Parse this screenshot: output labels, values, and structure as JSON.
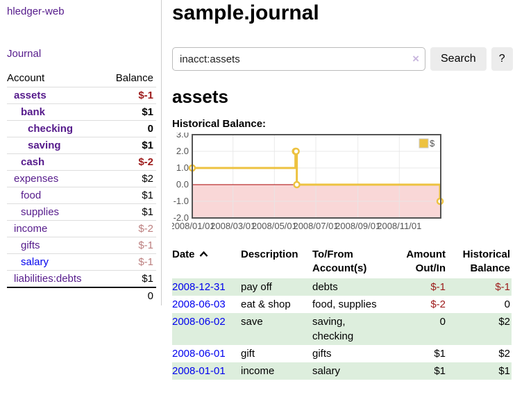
{
  "app": {
    "brand": "hledger-web"
  },
  "colors": {
    "link_purple": "#551A8B",
    "link_blue": "#0000EE",
    "negative_strong": "#9d1b1b",
    "negative_soft": "#bc7f7f",
    "row_stripe_green": "#ddeedd",
    "series_gold": "#edc240"
  },
  "sidebar": {
    "nav": {
      "journal": "Journal"
    },
    "accounts": {
      "headers": {
        "account": "Account",
        "balance": "Balance"
      },
      "rows": [
        {
          "name": "assets",
          "balance": "$-1"
        },
        {
          "name": "bank",
          "balance": "$1"
        },
        {
          "name": "checking",
          "balance": "0"
        },
        {
          "name": "saving",
          "balance": "$1"
        },
        {
          "name": "cash",
          "balance": "$-2"
        },
        {
          "name": "expenses",
          "balance": "$2"
        },
        {
          "name": "food",
          "balance": "$1"
        },
        {
          "name": "supplies",
          "balance": "$1"
        },
        {
          "name": "income",
          "balance": "$-2"
        },
        {
          "name": "gifts",
          "balance": "$-1"
        },
        {
          "name": "salary",
          "balance": "$-1"
        },
        {
          "name": "liabilities:debts",
          "balance": "$1"
        }
      ],
      "total": "0"
    }
  },
  "main": {
    "title": "sample.journal",
    "search": {
      "value": "inacct:assets",
      "clear_icon": "×",
      "button": "Search",
      "help": "?"
    },
    "account_heading": "assets",
    "chart_label": "Historical Balance:"
  },
  "chart_data": {
    "type": "line",
    "title": "Historical Balance:",
    "step": true,
    "x_domain": [
      "2008-01-01",
      "2009-01-01"
    ],
    "ylim": [
      -2,
      3
    ],
    "grid": true,
    "legend": {
      "label": "$",
      "position": "top-right"
    },
    "series": [
      {
        "name": "$",
        "color": "#edc240",
        "points": [
          [
            "2008-01-01",
            1
          ],
          [
            "2008-06-01",
            2
          ],
          [
            "2008-06-02",
            2
          ],
          [
            "2008-06-03",
            0
          ],
          [
            "2008-12-31",
            -1
          ]
        ]
      }
    ],
    "x_ticks": [
      {
        "date": "2008-01-01",
        "label": "2008/01/01"
      },
      {
        "date": "2008-03-01",
        "label": "2008/03/01"
      },
      {
        "date": "2008-05-01",
        "label": "2008/05/01"
      },
      {
        "date": "2008-07-01",
        "label": "2008/07/01"
      },
      {
        "date": "2008-09-01",
        "label": "2008/09/01"
      },
      {
        "date": "2008-11-01",
        "label": "2008/11/01"
      }
    ],
    "y_ticks": [
      {
        "v": 3,
        "label": "3.0"
      },
      {
        "v": 2,
        "label": "2.0"
      },
      {
        "v": 1,
        "label": "1.0"
      },
      {
        "v": 0,
        "label": "0.0"
      },
      {
        "v": -1,
        "label": "-1.0"
      },
      {
        "v": -2,
        "label": "-2.0"
      }
    ],
    "negative_region_color": "#f9d7d7",
    "zero_line_color": "#aa0000",
    "gridline_color": "#e6e6e6",
    "tick_label_color": "#545454"
  },
  "register": {
    "headers": {
      "date": "Date",
      "description": "Description",
      "to_from": "To/From Account(s)",
      "amount": "Amount Out/In",
      "balance": "Historical Balance"
    },
    "rows": [
      {
        "date": "2008-12-31",
        "description": "pay off",
        "to_from": "debts",
        "amount": "$-1",
        "balance": "$-1"
      },
      {
        "date": "2008-06-03",
        "description": "eat & shop",
        "to_from": "food, supplies",
        "amount": "$-2",
        "balance": "0"
      },
      {
        "date": "2008-06-02",
        "description": "save",
        "to_from": "saving, checking",
        "amount": "0",
        "balance": "$2"
      },
      {
        "date": "2008-06-01",
        "description": "gift",
        "to_from": "gifts",
        "amount": "$1",
        "balance": "$2"
      },
      {
        "date": "2008-01-01",
        "description": "income",
        "to_from": "salary",
        "amount": "$1",
        "balance": "$1"
      }
    ]
  }
}
